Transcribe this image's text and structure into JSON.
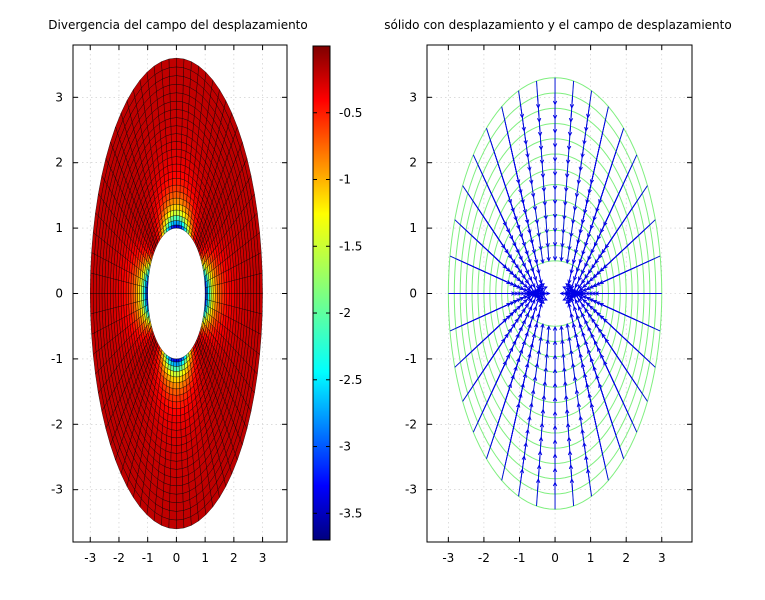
{
  "chart_data": [
    {
      "type": "heatmap",
      "title": "Divergencia del campo del desplazamiento",
      "xlabel": "",
      "ylabel": "",
      "xlim": [
        -3.6,
        3.85
      ],
      "ylim": [
        -3.8,
        3.8
      ],
      "x_ticks": [
        -3,
        -2,
        -1,
        0,
        1,
        2,
        3
      ],
      "x_tick_labels": [
        "-3",
        "-2",
        "-1",
        "0",
        "1",
        "2",
        "3"
      ],
      "y_ticks": [
        3,
        2,
        1,
        0,
        -1,
        -2,
        -3
      ],
      "y_tick_labels": [
        "3",
        "2",
        "1",
        "0",
        "-1",
        "-2",
        "-3"
      ],
      "domain": {
        "shape": "elliptical annulus",
        "inner_radius": 1,
        "outer_semi_axis_x": 3,
        "outer_semi_axis_y": 3.6
      },
      "mesh": {
        "radial_divisions": 24,
        "angular_divisions": 72
      },
      "field": "divergence of the displacement field",
      "colorbar": {
        "colormap": "jet",
        "range": [
          -3.7,
          0
        ],
        "ticks": [
          -0.5,
          -1,
          -1.5,
          -2,
          -2.5,
          -3,
          -3.5
        ],
        "tick_labels": [
          "-0.5",
          "-1",
          "-1.5",
          "-2",
          "-2.5",
          "-3",
          "-3.5"
        ]
      },
      "grid": true
    },
    {
      "type": "scatter",
      "title": "sólido con desplazamiento y el campo de desplazamiento",
      "xlabel": "",
      "ylabel": "",
      "xlim": [
        -3.6,
        3.85
      ],
      "ylim": [
        -3.8,
        3.8
      ],
      "x_ticks": [
        -3,
        -2,
        -1,
        0,
        1,
        2,
        3
      ],
      "x_tick_labels": [
        "-3",
        "-2",
        "-1",
        "0",
        "1",
        "2",
        "3"
      ],
      "y_ticks": [
        3,
        2,
        1,
        0,
        -1,
        -2,
        -3
      ],
      "y_tick_labels": [
        "3",
        "2",
        "1",
        "0",
        "-1",
        "-2",
        "-3"
      ],
      "deformed_mesh": {
        "color": "#7fef7f",
        "radial_rings": 12,
        "angular_divisions": 36
      },
      "vector_field": {
        "color": "#0000e6",
        "description": "displacement vectors pointing inward toward the hole"
      },
      "grid": true
    }
  ]
}
